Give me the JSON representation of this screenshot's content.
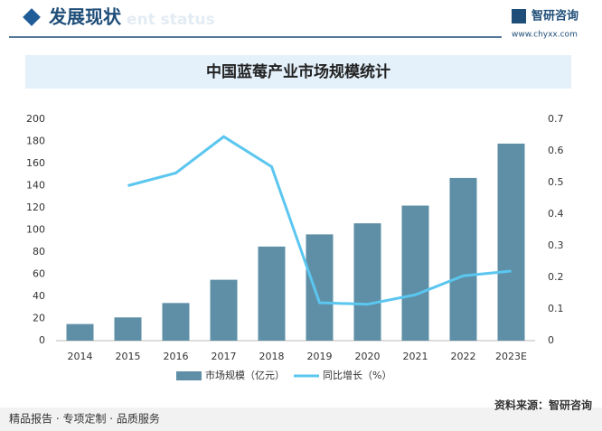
{
  "header": {
    "title": "发展现状",
    "watermark": "ent status",
    "brand": "智研咨询",
    "url": "www.chyxx.com"
  },
  "chart_data": {
    "type": "bar",
    "title": "中国蓝莓产业市场规模统计",
    "categories": [
      "2014",
      "2015",
      "2016",
      "2017",
      "2018",
      "2019",
      "2020",
      "2021",
      "2022",
      "2023E"
    ],
    "series": [
      {
        "name": "市场规模（亿元）",
        "color": "#5e8fa6",
        "type": "bar",
        "values": [
          15,
          21,
          34,
          55,
          85,
          96,
          106,
          122,
          147,
          178
        ]
      },
      {
        "name": "同比增长（%）",
        "color": "#5bc6ef",
        "type": "line",
        "axis": "y2",
        "values": [
          null,
          0.49,
          0.53,
          0.645,
          0.55,
          0.12,
          0.115,
          0.145,
          0.205,
          0.22
        ]
      }
    ],
    "ylim": [
      0,
      200
    ],
    "yticks": [
      0,
      20,
      40,
      60,
      80,
      100,
      120,
      140,
      160,
      180,
      200
    ],
    "y2lim": [
      0,
      0.7
    ],
    "y2ticks": [
      0,
      0.1,
      0.2,
      0.3,
      0.4,
      0.5,
      0.6,
      0.7
    ],
    "legend": "bottom",
    "grid": false
  },
  "footer": {
    "slogan": "精品报告 · 专项定制 · 品质服务",
    "source": "资料来源：智研咨询"
  }
}
